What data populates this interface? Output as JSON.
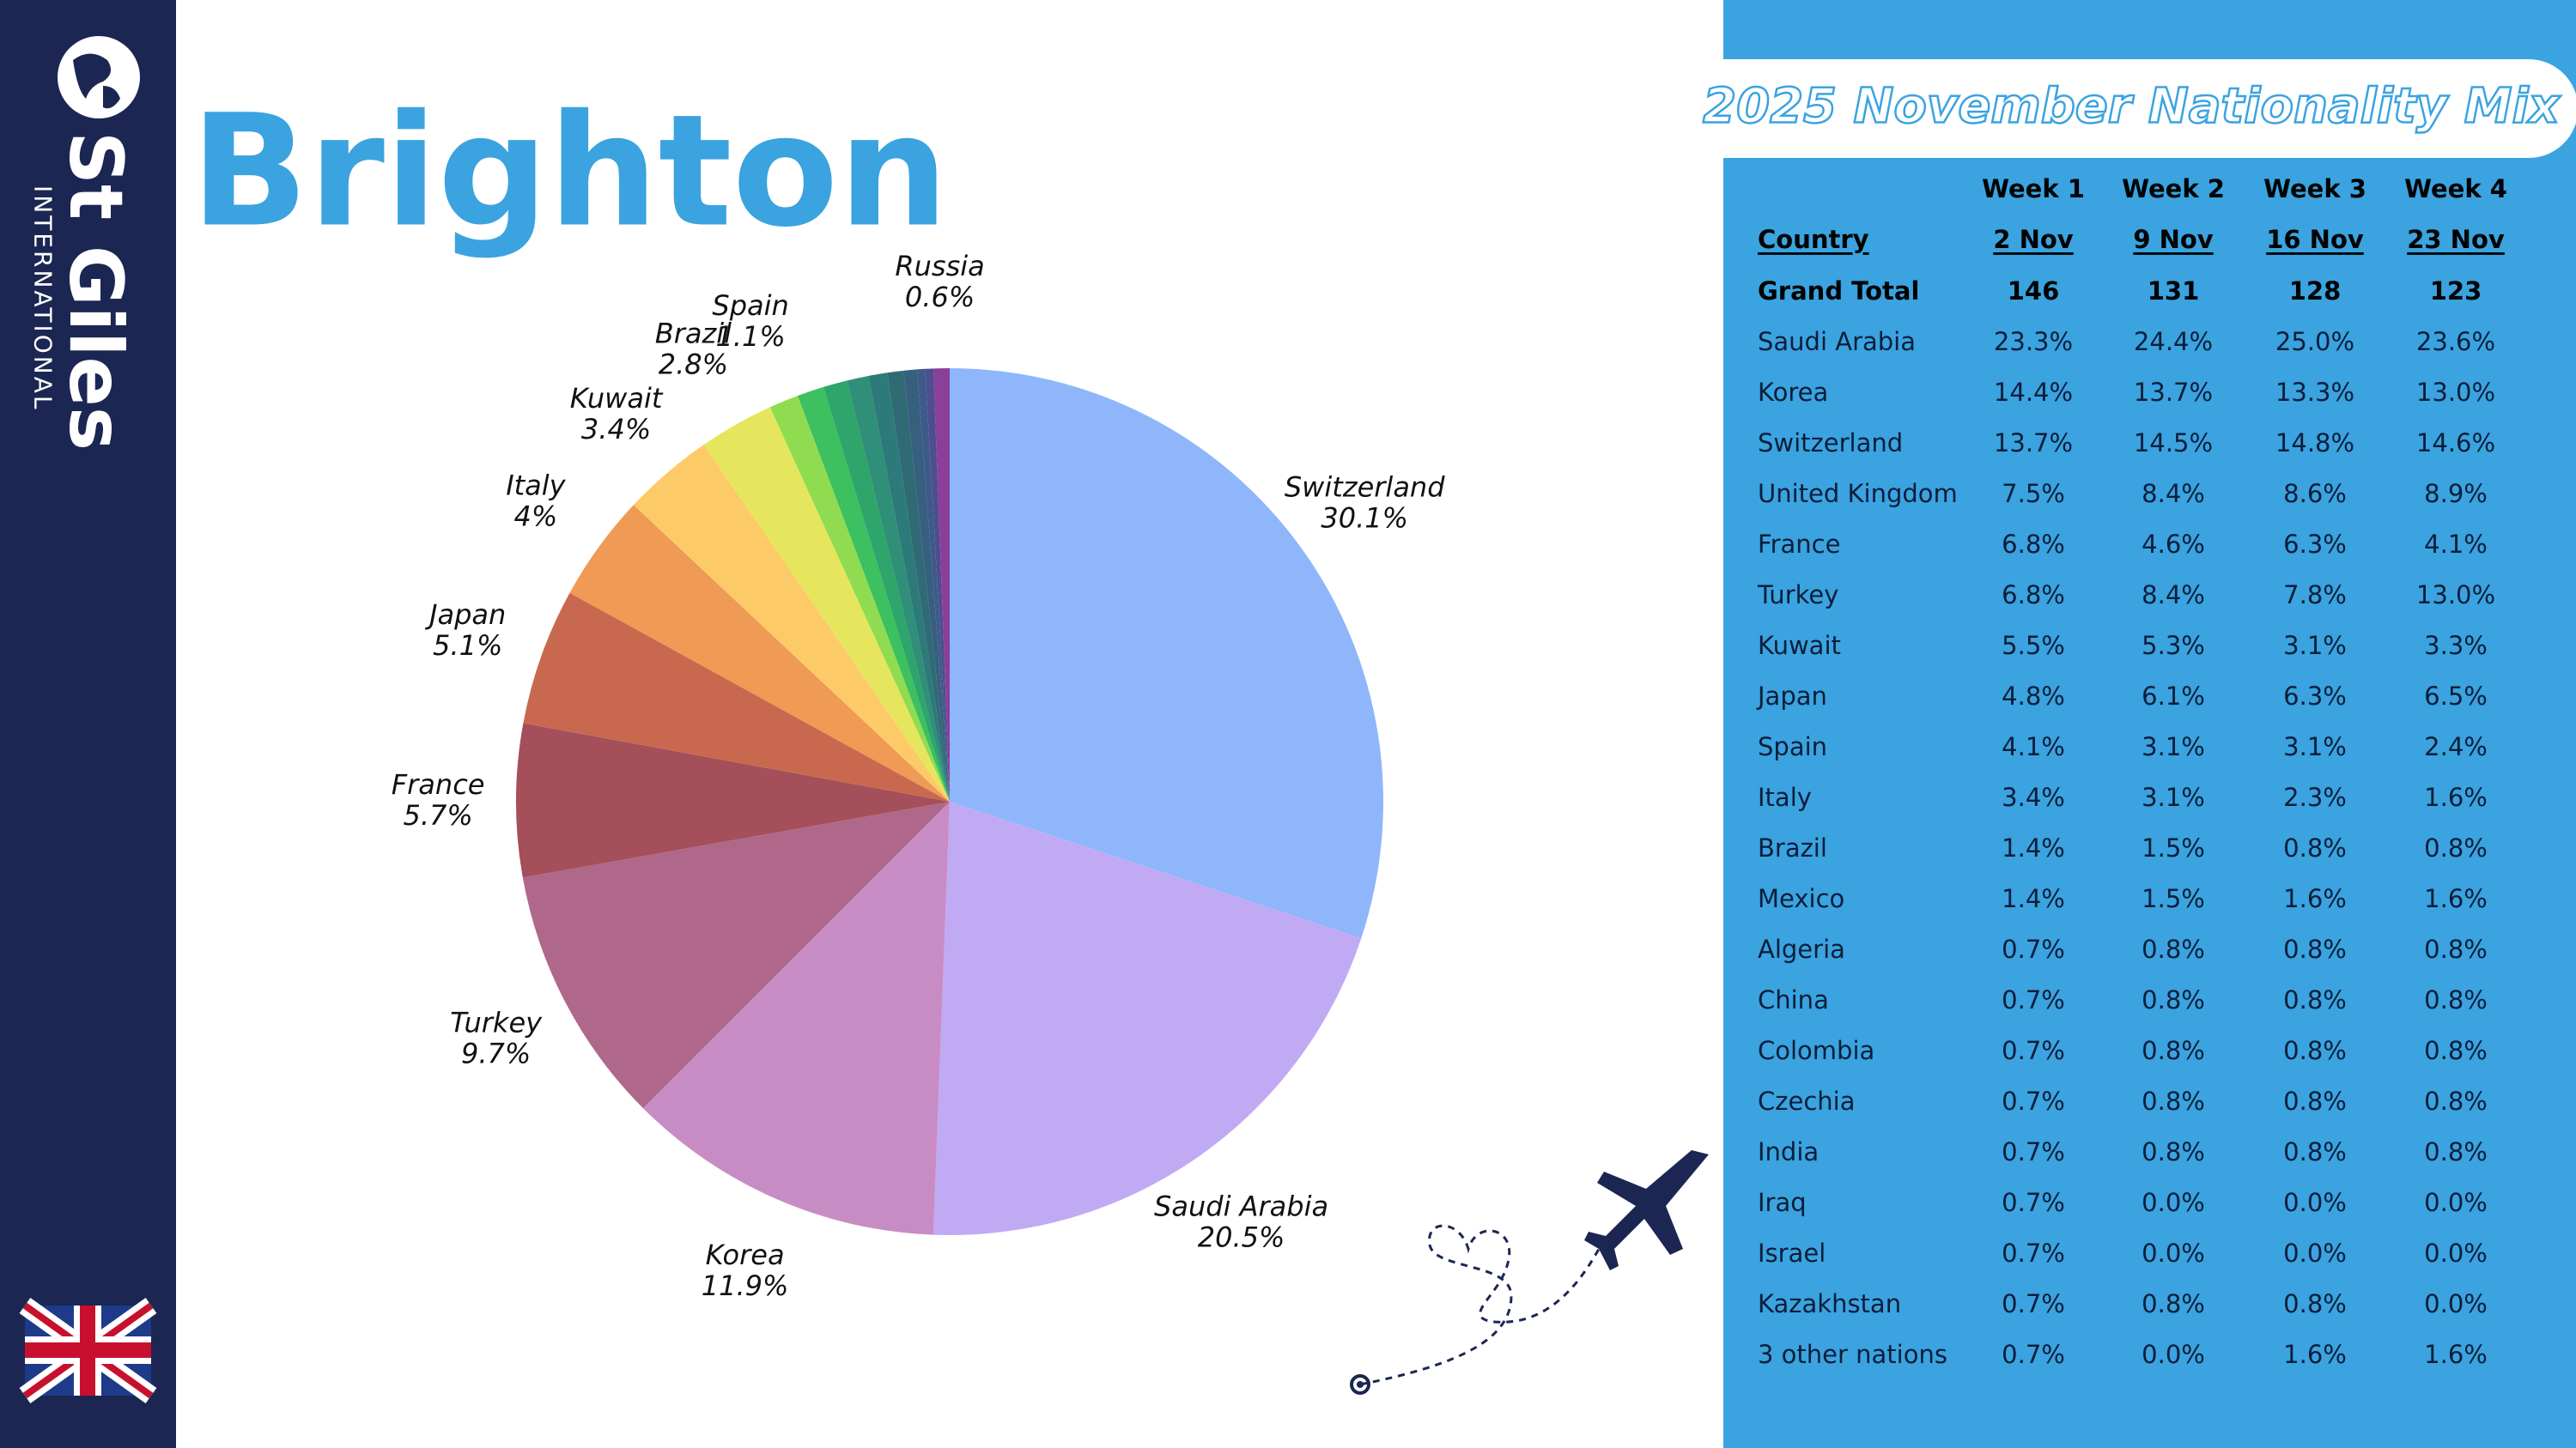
{
  "brand": {
    "name": "St Giles",
    "subtitle": "INTERNATIONAL"
  },
  "page_title": "Brighton",
  "chart_data": {
    "type": "pie",
    "categories": [
      "Switzerland",
      "Saudi Arabia",
      "Korea",
      "Turkey",
      "France",
      "Japan",
      "Italy",
      "Kuwait",
      "Brazil",
      "Spain",
      null,
      null,
      null,
      null,
      null,
      null,
      null,
      null,
      "Russia"
    ],
    "values": [
      30.1,
      20.5,
      11.9,
      9.7,
      5.7,
      5.1,
      4,
      3.4,
      2.8,
      1.1,
      1.0,
      0.9,
      0.8,
      0.7,
      0.6,
      0.5,
      0.3,
      0.3,
      0.6
    ],
    "value_labels": [
      "30.1%",
      "20.5%",
      "11.9%",
      "9.7%",
      "5.7%",
      "5.1%",
      "4%",
      "3.4%",
      "2.8%",
      "1.1%",
      null,
      null,
      null,
      null,
      null,
      null,
      null,
      null,
      "0.6%"
    ],
    "colors": [
      "#8fb6fb",
      "#c1aaf4",
      "#c88cc4",
      "#b0688a",
      "#a44f5a",
      "#c8694f",
      "#ef9a55",
      "#fdca68",
      "#e6e65e",
      "#90dc50",
      "#3cc060",
      "#2ea56a",
      "#2f8f78",
      "#2d7a7a",
      "#2f6a75",
      "#36607e",
      "#3e5a8a",
      "#4c4e8e",
      "#8a3f9a"
    ]
  },
  "table": {
    "title": "2025 November Nationality Mix",
    "weeks": [
      "Week 1",
      "Week 2",
      "Week 3",
      "Week 4"
    ],
    "country_header": "Country",
    "dates": [
      "2 Nov",
      "9 Nov",
      "16 Nov",
      "23 Nov"
    ],
    "rows": [
      [
        "Grand Total",
        "146",
        "131",
        "128",
        "123"
      ],
      [
        "Saudi Arabia",
        "23.3%",
        "24.4%",
        "25.0%",
        "23.6%"
      ],
      [
        "Korea",
        "14.4%",
        "13.7%",
        "13.3%",
        "13.0%"
      ],
      [
        "Switzerland",
        "13.7%",
        "14.5%",
        "14.8%",
        "14.6%"
      ],
      [
        "United Kingdom",
        "7.5%",
        "8.4%",
        "8.6%",
        "8.9%"
      ],
      [
        "France",
        "6.8%",
        "4.6%",
        "6.3%",
        "4.1%"
      ],
      [
        "Turkey",
        "6.8%",
        "8.4%",
        "7.8%",
        "13.0%"
      ],
      [
        "Kuwait",
        "5.5%",
        "5.3%",
        "3.1%",
        "3.3%"
      ],
      [
        "Japan",
        "4.8%",
        "6.1%",
        "6.3%",
        "6.5%"
      ],
      [
        "Spain",
        "4.1%",
        "3.1%",
        "3.1%",
        "2.4%"
      ],
      [
        "Italy",
        "3.4%",
        "3.1%",
        "2.3%",
        "1.6%"
      ],
      [
        "Brazil",
        "1.4%",
        "1.5%",
        "0.8%",
        "0.8%"
      ],
      [
        "Mexico",
        "1.4%",
        "1.5%",
        "1.6%",
        "1.6%"
      ],
      [
        "Algeria",
        "0.7%",
        "0.8%",
        "0.8%",
        "0.8%"
      ],
      [
        "China",
        "0.7%",
        "0.8%",
        "0.8%",
        "0.8%"
      ],
      [
        "Colombia",
        "0.7%",
        "0.8%",
        "0.8%",
        "0.8%"
      ],
      [
        "Czechia",
        "0.7%",
        "0.8%",
        "0.8%",
        "0.8%"
      ],
      [
        "India",
        "0.7%",
        "0.8%",
        "0.8%",
        "0.8%"
      ],
      [
        "Iraq",
        "0.7%",
        "0.0%",
        "0.0%",
        "0.0%"
      ],
      [
        "Israel",
        "0.7%",
        "0.0%",
        "0.0%",
        "0.0%"
      ],
      [
        "Kazakhstan",
        "0.7%",
        "0.8%",
        "0.8%",
        "0.0%"
      ],
      [
        "3 other nations",
        "0.7%",
        "0.0%",
        "1.6%",
        "1.6%"
      ]
    ]
  }
}
